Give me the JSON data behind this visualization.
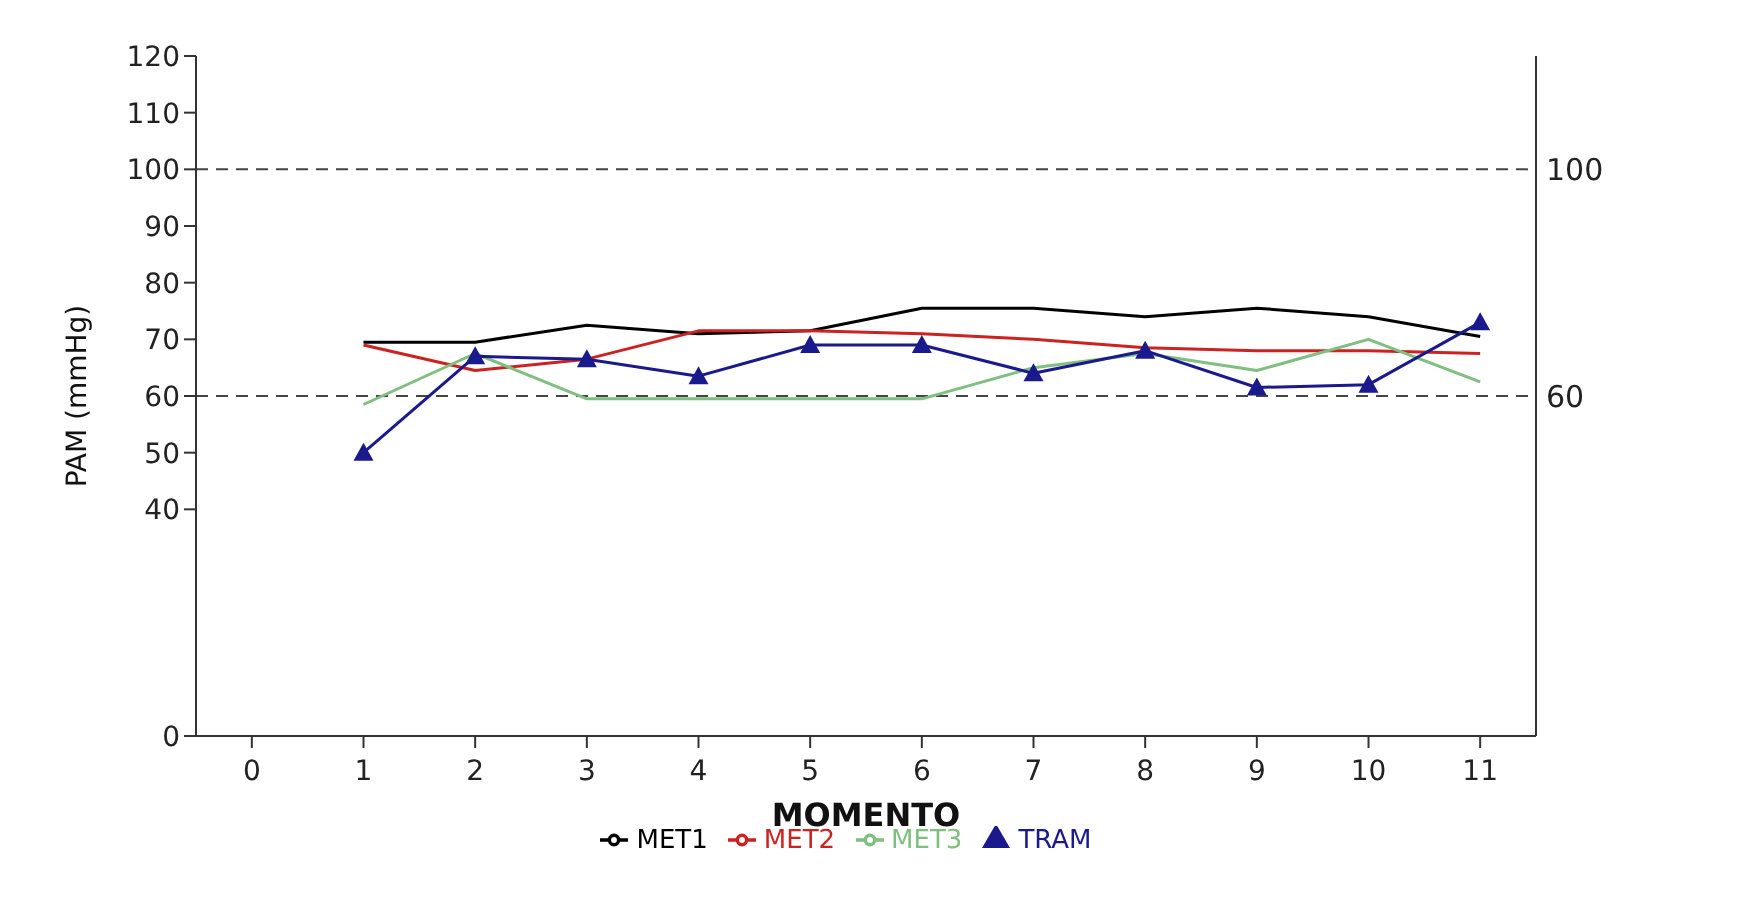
{
  "chart_data": {
    "type": "line",
    "xlabel": "MOMENTO",
    "ylabel": "PAM (mmHg)",
    "x": [
      1,
      2,
      3,
      4,
      5,
      6,
      7,
      8,
      9,
      10,
      11
    ],
    "xlim": [
      -0.5,
      11.5
    ],
    "xticks": [
      0,
      1,
      2,
      3,
      4,
      5,
      6,
      7,
      8,
      9,
      10,
      11
    ],
    "ylim": [
      0,
      120
    ],
    "yticks": [
      0,
      40,
      50,
      60,
      70,
      80,
      90,
      100,
      110,
      120
    ],
    "series": [
      {
        "name": "MET1",
        "color": "#000000",
        "marker": "none",
        "values": [
          69.5,
          69.5,
          72.5,
          71,
          71.5,
          75.5,
          75.5,
          74,
          75.5,
          74,
          70.5
        ]
      },
      {
        "name": "MET2",
        "color": "#cc2222",
        "marker": "none",
        "values": [
          69,
          64.5,
          66.5,
          71.5,
          71.5,
          71,
          70,
          68.5,
          68,
          68,
          67.5
        ]
      },
      {
        "name": "MET3",
        "color": "#7fbf7f",
        "marker": "none",
        "values": [
          58.5,
          67.5,
          59.5,
          59.5,
          59.5,
          59.5,
          65,
          67.5,
          64.5,
          70,
          62.5
        ]
      },
      {
        "name": "TRAM",
        "color": "#1a1a8c",
        "marker": "triangle",
        "values": [
          50,
          67,
          66.5,
          63.5,
          69,
          69,
          64,
          68,
          61.5,
          62,
          73
        ]
      }
    ],
    "ref_lines": [
      {
        "axis": "y",
        "value": 100,
        "label": "100",
        "color": "#444444",
        "line_style": "dashed"
      },
      {
        "axis": "y",
        "value": 60,
        "label": "60",
        "color": "#444444",
        "line_style": "dashed"
      }
    ],
    "legend": "bottom",
    "line_style": "solid"
  }
}
